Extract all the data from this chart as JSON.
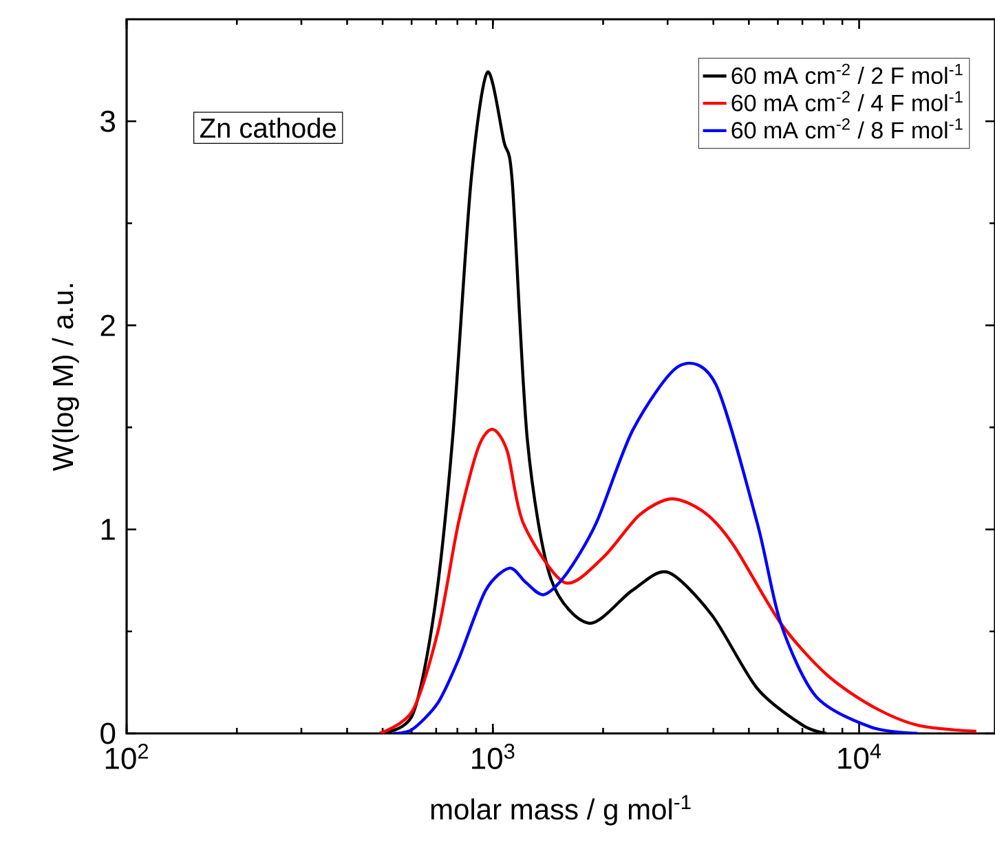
{
  "chart_data": {
    "type": "line",
    "xlabel": "molar mass / g mol$^{-1}$",
    "ylabel": "W(log M) / a.u.",
    "annotations": [
      "Zn cathode"
    ],
    "log": "x",
    "xlim": [
      100,
      23500
    ],
    "xticks": [
      {
        "value": 100,
        "label": "10$^{2}$"
      },
      {
        "value": 1000,
        "label": "10$^{3}$"
      },
      {
        "value": 10000,
        "label": "10$^{4}$"
      }
    ],
    "ylim": [
      0,
      3.5
    ],
    "yticks": [
      0,
      1,
      2,
      3
    ],
    "legend": "top right",
    "marker": "none",
    "line_style": "solid",
    "grid": false,
    "series": [
      {
        "name": "60 mA cm$^{-2}$ / 2 F mol$^{-1}$",
        "color": "#000000",
        "x": [
          490,
          603,
          692,
          776,
          871,
          966,
          1072,
          1130,
          1242,
          1439,
          1832,
          2399,
          3000,
          3963,
          5272,
          7015,
          8128
        ],
        "values": [
          0,
          0.09,
          0.6,
          1.44,
          2.7,
          3.24,
          2.9,
          2.7,
          1.44,
          0.76,
          0.54,
          0.7,
          0.79,
          0.58,
          0.22,
          0.04,
          0
        ]
      },
      {
        "name": "60 mA cm$^{-2}$ / 4 F mol$^{-1}$",
        "color": "#ff0000",
        "x": [
          490,
          603,
          708,
          805,
          912,
          1000,
          1096,
          1211,
          1567,
          1995,
          2512,
          3083,
          3802,
          4550,
          6109,
          8128,
          10810,
          14450,
          20890
        ],
        "values": [
          0,
          0.11,
          0.5,
          1.03,
          1.4,
          1.49,
          1.38,
          1.03,
          0.74,
          0.86,
          1.07,
          1.15,
          1.08,
          0.92,
          0.54,
          0.29,
          0.135,
          0.04,
          0.01
        ]
      },
      {
        "name": "60 mA cm$^{-2}$ / 8 F mol$^{-1}$",
        "color": "#0000ff",
        "x": [
          537,
          603,
          708,
          805,
          955,
          1109,
          1230,
          1377,
          1585,
          1914,
          2415,
          3221,
          4064,
          5272,
          6109,
          7638,
          10810,
          14450
        ],
        "values": [
          0,
          0.02,
          0.15,
          0.36,
          0.7,
          0.81,
          0.74,
          0.68,
          0.78,
          1.03,
          1.49,
          1.8,
          1.71,
          1.03,
          0.54,
          0.18,
          0.03,
          0
        ]
      }
    ]
  }
}
